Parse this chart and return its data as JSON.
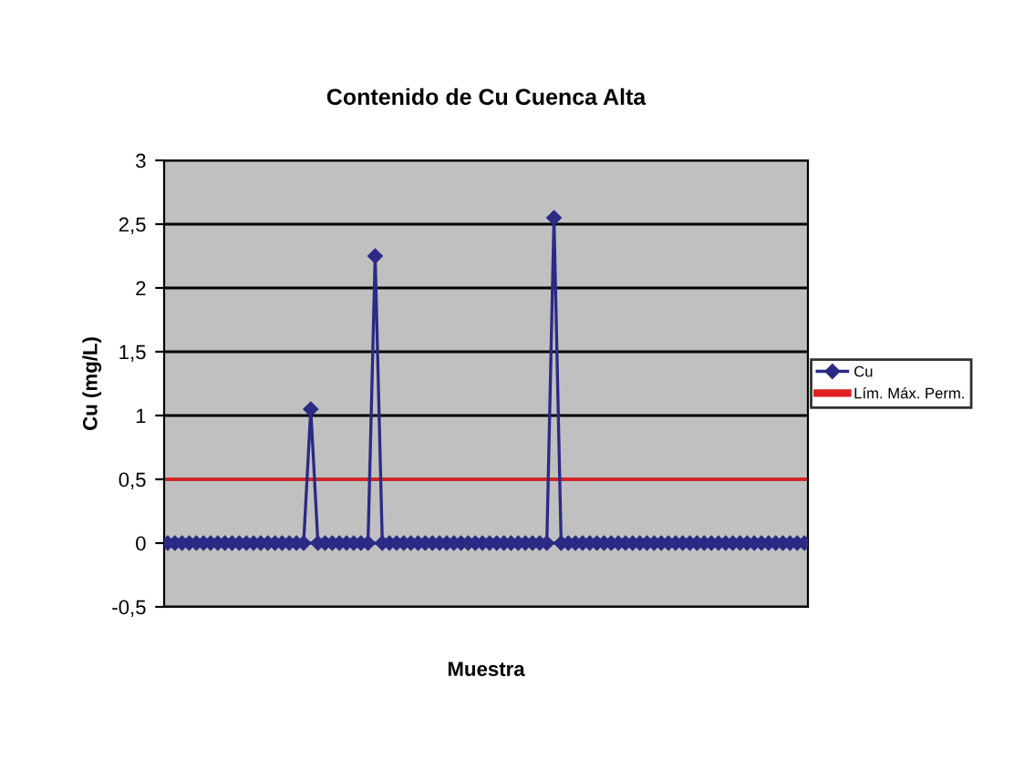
{
  "chart_data": {
    "type": "line",
    "title": "Contenido de Cu Cuenca Alta",
    "xlabel": "Muestra",
    "ylabel": "Cu (mg/L)",
    "categories": [
      null,
      null,
      null,
      null,
      null,
      null,
      null,
      null,
      null,
      null,
      null,
      null,
      null,
      null,
      null,
      null,
      null,
      null,
      null,
      null,
      null,
      null,
      null,
      null,
      null,
      null,
      null,
      null,
      null,
      null,
      null,
      null,
      null,
      null,
      null,
      null,
      null,
      null,
      null,
      null,
      null,
      null,
      null,
      null,
      null,
      null,
      null,
      null,
      null,
      null,
      null,
      null,
      null,
      null,
      null,
      null,
      null,
      null,
      null,
      null,
      null,
      null,
      null,
      null,
      null,
      null,
      null,
      null,
      null,
      null,
      null,
      null,
      null,
      null,
      null,
      null,
      null,
      null,
      null,
      null,
      null,
      null,
      null,
      null,
      null,
      null,
      null,
      null,
      null,
      null
    ],
    "series": [
      {
        "name": "Cu",
        "color": "#2b2a85",
        "values": [
          0,
          0,
          0,
          0,
          0,
          0,
          0,
          0,
          0,
          0,
          0,
          0,
          0,
          0,
          0,
          0,
          0,
          0,
          0,
          0,
          1.05,
          0,
          0,
          0,
          0,
          0,
          0,
          0,
          0,
          2.25,
          0,
          0,
          0,
          0,
          0,
          0,
          0,
          0,
          0,
          0,
          0,
          0,
          0,
          0,
          0,
          0,
          0,
          0,
          0,
          0,
          0,
          0,
          0,
          0,
          2.55,
          0,
          0,
          0,
          0,
          0,
          0,
          0,
          0,
          0,
          0,
          0,
          0,
          0,
          0,
          0,
          0,
          0,
          0,
          0,
          0,
          0,
          0,
          0,
          0,
          0,
          0,
          0,
          0,
          0,
          0,
          0,
          0,
          0,
          0,
          0
        ]
      }
    ],
    "ref_lines": [
      {
        "axis": "y",
        "value": 0.5,
        "label": "Lím. Máx. Perm.",
        "color": "#e02020"
      }
    ],
    "ylim": [
      -0.5,
      3
    ],
    "yticks": [
      {
        "value": -0.5,
        "label": "-0,5"
      },
      0,
      {
        "value": 0.5,
        "label": "0,5"
      },
      1,
      {
        "value": 1.5,
        "label": "1,5"
      },
      2,
      {
        "value": 2.5,
        "label": "2,5"
      },
      3
    ],
    "grid": "y",
    "legend": "right",
    "marker": "diamond",
    "line_style": "solid"
  }
}
